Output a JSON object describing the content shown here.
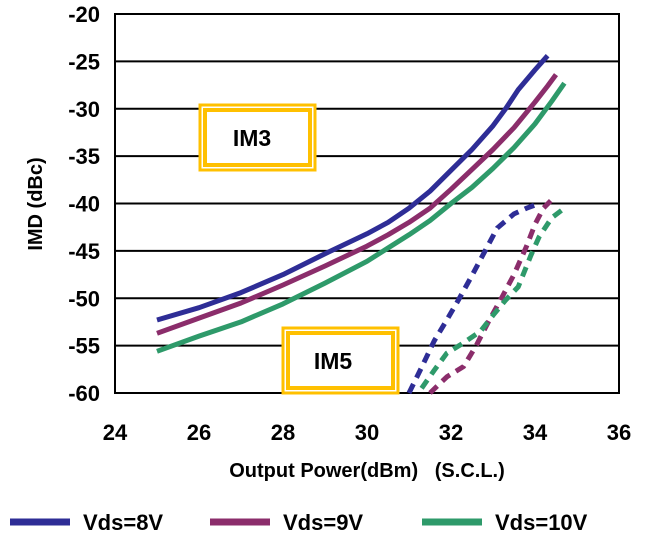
{
  "chart_data": {
    "type": "line",
    "xlabel": "Output Power(dBm)   (S.C.L.)",
    "ylabel": "IMD (dBc)",
    "xlim": [
      24,
      36
    ],
    "ylim": [
      -60,
      -20
    ],
    "xticks": [
      "24",
      "26",
      "28",
      "30",
      "32",
      "34",
      "36"
    ],
    "yticks": [
      "-20",
      "-25",
      "-30",
      "-35",
      "-40",
      "-45",
      "-50",
      "-55",
      "-60"
    ],
    "grid": "horizontal",
    "legend_position": "bottom",
    "annotations": [
      {
        "text": "IM3",
        "color": "#ffc000"
      },
      {
        "text": "IM5",
        "color": "#ffc000"
      }
    ],
    "series": [
      {
        "name": "Vds=8V",
        "group": "IM3",
        "style": "solid",
        "color": "#2e2d96",
        "x": [
          25,
          26,
          27,
          28,
          29,
          30,
          30.5,
          31,
          31.5,
          32,
          32.5,
          33,
          33.3,
          33.6,
          34,
          34.3
        ],
        "y": [
          -52.3,
          -51,
          -49.4,
          -47.5,
          -45.3,
          -43.2,
          -42,
          -40.5,
          -38.7,
          -36.5,
          -34.3,
          -31.8,
          -30,
          -28,
          -25.9,
          -24.4
        ]
      },
      {
        "name": "Vds=9V",
        "group": "IM3",
        "style": "solid",
        "color": "#8b2d6b",
        "x": [
          25,
          26,
          27,
          28,
          29,
          30,
          30.5,
          31,
          31.5,
          32,
          32.5,
          33,
          33.5,
          34,
          34.3,
          34.5
        ],
        "y": [
          -53.7,
          -52.1,
          -50.5,
          -48.6,
          -46.6,
          -44.5,
          -43.3,
          -42,
          -40.5,
          -38.5,
          -36.4,
          -34.3,
          -32,
          -29.3,
          -27.6,
          -26.4
        ]
      },
      {
        "name": "Vds=10V",
        "group": "IM3",
        "style": "solid",
        "color": "#2e9a6a",
        "x": [
          25,
          26,
          27,
          28,
          29,
          30,
          30.5,
          31,
          31.5,
          32,
          32.5,
          33,
          33.5,
          34,
          34.4,
          34.7
        ],
        "y": [
          -55.6,
          -54,
          -52.5,
          -50.6,
          -48.4,
          -46.1,
          -44.7,
          -43.3,
          -41.8,
          -40,
          -38.3,
          -36.3,
          -34.1,
          -31.6,
          -29.2,
          -27.3
        ]
      },
      {
        "name": "Vds=8V",
        "group": "IM5",
        "style": "dashed",
        "color": "#2e2d96",
        "x": [
          31,
          31.3,
          31.6,
          31.9,
          32.2,
          32.5,
          32.8,
          33.1,
          33.5,
          33.8,
          34.1
        ],
        "y": [
          -60,
          -57.3,
          -54.5,
          -52.3,
          -50,
          -47.6,
          -45.1,
          -42.6,
          -41.1,
          -40.5,
          -40
        ]
      },
      {
        "name": "Vds=9V",
        "group": "IM5",
        "style": "dashed",
        "color": "#8b2d6b",
        "x": [
          31.5,
          31.9,
          32.3,
          32.6,
          32.9,
          33.2,
          33.5,
          33.8,
          34,
          34.2,
          34.4
        ],
        "y": [
          -60,
          -58.3,
          -57.2,
          -55,
          -52.4,
          -50,
          -47.5,
          -44.5,
          -42.2,
          -40.5,
          -39.6
        ]
      },
      {
        "name": "Vds=10V",
        "group": "IM5",
        "style": "dashed",
        "color": "#2e9a6a",
        "x": [
          31.3,
          31.6,
          31.9,
          32.3,
          32.7,
          33,
          33.3,
          33.6,
          33.9,
          34.1,
          34.4,
          34.7
        ],
        "y": [
          -59.5,
          -57.6,
          -55.8,
          -54.7,
          -53.5,
          -51.8,
          -50.2,
          -48.8,
          -45.5,
          -43.5,
          -41.5,
          -40.5
        ]
      }
    ],
    "legend": [
      {
        "label": "Vds=8V",
        "color": "#2e2d96"
      },
      {
        "label": "Vds=9V",
        "color": "#8b2d6b"
      },
      {
        "label": "Vds=10V",
        "color": "#2e9a6a"
      }
    ]
  }
}
